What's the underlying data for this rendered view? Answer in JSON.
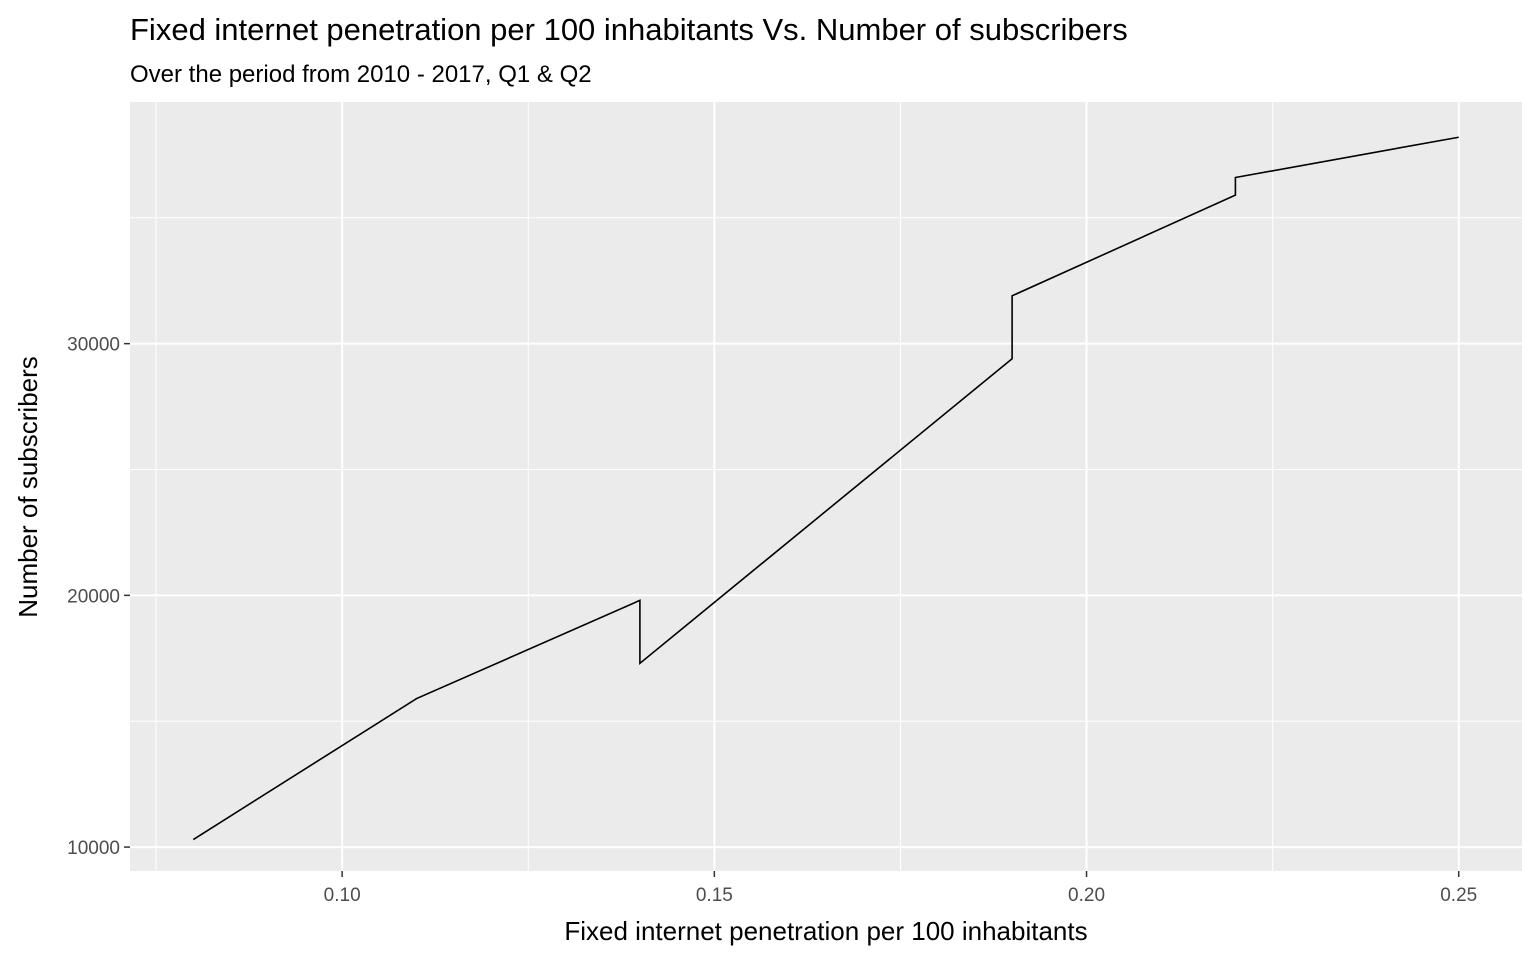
{
  "chart_data": {
    "type": "line",
    "title": "Fixed internet penetration per 100 inhabitants Vs. Number of subscribers",
    "subtitle": "Over the period from 2010 - 2017, Q1 & Q2",
    "xlabel": "Fixed internet penetration per 100 inhabitants",
    "ylabel": "Number of subscribers",
    "xlim": [
      0.0715,
      0.2585
    ],
    "ylim": [
      9050,
      39600
    ],
    "x_ticks": [
      0.1,
      0.15,
      0.2,
      0.25
    ],
    "x_tick_labels": [
      "0.10",
      "0.15",
      "0.20",
      "0.25"
    ],
    "y_ticks": [
      10000,
      20000,
      30000
    ],
    "y_tick_labels": [
      "10000",
      "20000",
      "30000"
    ],
    "grid": true,
    "legend": "none",
    "colors": {
      "panel": "#ebebeb",
      "grid": "#ffffff",
      "line": "#000000"
    },
    "series": [
      {
        "x": [
          0.08,
          0.11,
          0.14,
          0.14,
          0.19,
          0.19,
          0.22,
          0.22,
          0.25
        ],
        "y": [
          10300,
          15900,
          19800,
          17300,
          29400,
          31900,
          35900,
          36600,
          38200
        ]
      }
    ]
  }
}
